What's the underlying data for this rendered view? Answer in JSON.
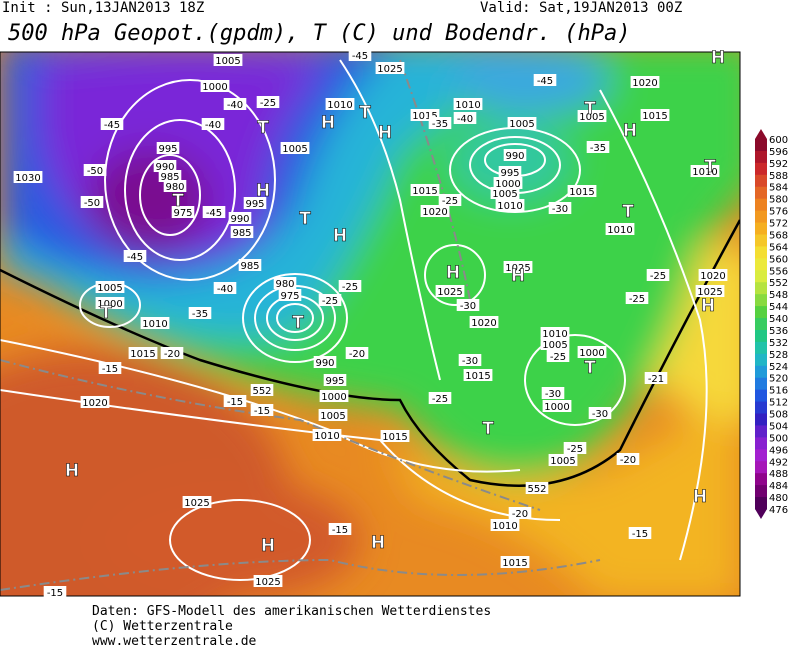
{
  "header": {
    "init": "Init : Sun,13JAN2013 18Z",
    "valid": "Valid: Sat,19JAN2013 00Z",
    "title": "500 hPa Geopot.(gpdm), T (C) und Bodendr. (hPa)"
  },
  "map": {
    "labels": [
      "1005",
      "1000",
      "-40",
      "-45",
      "-40",
      "995",
      "990",
      "985",
      "980",
      "-50",
      "-50",
      "975",
      "-45",
      "990",
      "985",
      "995",
      "1030",
      "-45",
      "1005",
      "1000",
      "1010",
      "-35",
      "-40",
      "985",
      "980",
      "975",
      "-25",
      "-25",
      "990",
      "995",
      "1000",
      "1005",
      "1010",
      "1015",
      "1015",
      "-20",
      "-15",
      "-15",
      "1020",
      "-15",
      "-20",
      "-25",
      "1005",
      "1010",
      "1025",
      "-45",
      "1010",
      "1015",
      "-40",
      "1005",
      "-35",
      "-45",
      "990",
      "995",
      "1000",
      "1005",
      "1010",
      "1015",
      "1020",
      "-25",
      "-30",
      "1015",
      "1010",
      "1020",
      "1015",
      "1005",
      "-35",
      "1010",
      "1025",
      "1025",
      "-30",
      "1020",
      "-25",
      "-25",
      "1020",
      "1025",
      "1010",
      "1005",
      "-25",
      "1000",
      "-30",
      "1015",
      "-25",
      "-21",
      "1000",
      "-30",
      "-30",
      "-25",
      "1005",
      "-20",
      "1010",
      "-20",
      "1015",
      "-15",
      "1025",
      "-15",
      "1025",
      "-15",
      "552",
      "552"
    ],
    "markers": [
      "H",
      "T",
      "H",
      "H",
      "T",
      "T",
      "H",
      "T",
      "T",
      "T",
      "H",
      "H",
      "T",
      "T",
      "H",
      "T",
      "T",
      "T",
      "H",
      "H",
      "H",
      "H",
      "H",
      "H"
    ]
  },
  "colorbar": {
    "values": [
      600,
      596,
      592,
      588,
      584,
      580,
      576,
      572,
      568,
      564,
      560,
      556,
      552,
      548,
      544,
      540,
      536,
      532,
      528,
      524,
      520,
      516,
      512,
      508,
      504,
      500,
      496,
      492,
      488,
      484,
      480,
      476
    ]
  },
  "footer": {
    "lines": [
      "Daten: GFS-Modell des amerikanischen Wetterdienstes",
      "(C) Wetterzentrale",
      "www.wetterzentrale.de"
    ]
  }
}
